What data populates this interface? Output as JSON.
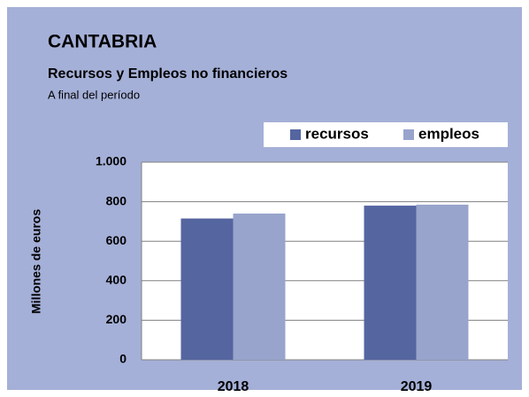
{
  "chart_data": {
    "type": "bar",
    "title": "CANTABRIA",
    "subtitle": "Recursos y Empleos no financieros",
    "note": "A final del período",
    "ylabel": "Millones de euros",
    "categories": [
      "2018",
      "2019"
    ],
    "series": [
      {
        "name": "recursos",
        "color": "#5565a0",
        "values": [
          715,
          780
        ]
      },
      {
        "name": "empleos",
        "color": "#98a4cc",
        "values": [
          740,
          785
        ]
      }
    ],
    "ylim": [
      0,
      1000
    ],
    "yticks": [
      0,
      200,
      400,
      600,
      800,
      {
        "value": 1000,
        "label": "1.000"
      }
    ],
    "grid": true,
    "legend": "top-right"
  }
}
